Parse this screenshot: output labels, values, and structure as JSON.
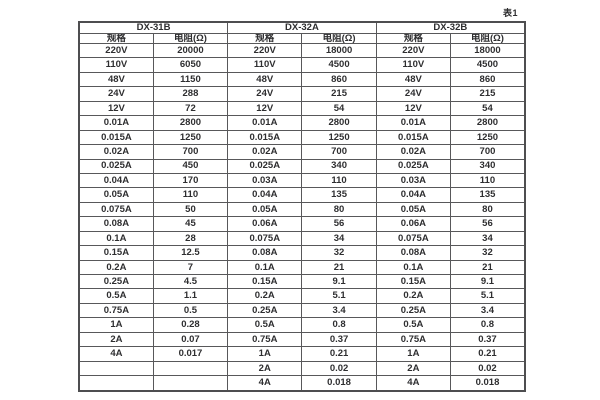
{
  "page": {
    "caption": "表1"
  },
  "table": {
    "groups": [
      {
        "label": "DX-31B"
      },
      {
        "label": "DX-32A"
      },
      {
        "label": "DX-32B"
      }
    ],
    "column_headers": {
      "spec": "规格",
      "resistance": "电阻(Ω)"
    },
    "rows": [
      [
        "220V",
        "20000",
        "220V",
        "18000",
        "220V",
        "18000"
      ],
      [
        "110V",
        "6050",
        "110V",
        "4500",
        "110V",
        "4500"
      ],
      [
        "48V",
        "1150",
        "48V",
        "860",
        "48V",
        "860"
      ],
      [
        "24V",
        "288",
        "24V",
        "215",
        "24V",
        "215"
      ],
      [
        "12V",
        "72",
        "12V",
        "54",
        "12V",
        "54"
      ],
      [
        "0.01A",
        "2800",
        "0.01A",
        "2800",
        "0.01A",
        "2800"
      ],
      [
        "0.015A",
        "1250",
        "0.015A",
        "1250",
        "0.015A",
        "1250"
      ],
      [
        "0.02A",
        "700",
        "0.02A",
        "700",
        "0.02A",
        "700"
      ],
      [
        "0.025A",
        "450",
        "0.025A",
        "340",
        "0.025A",
        "340"
      ],
      [
        "0.04A",
        "170",
        "0.03A",
        "110",
        "0.03A",
        "110"
      ],
      [
        "0.05A",
        "110",
        "0.04A",
        "135",
        "0.04A",
        "135"
      ],
      [
        "0.075A",
        "50",
        "0.05A",
        "80",
        "0.05A",
        "80"
      ],
      [
        "0.08A",
        "45",
        "0.06A",
        "56",
        "0.06A",
        "56"
      ],
      [
        "0.1A",
        "28",
        "0.075A",
        "34",
        "0.075A",
        "34"
      ],
      [
        "0.15A",
        "12.5",
        "0.08A",
        "32",
        "0.08A",
        "32"
      ],
      [
        "0.2A",
        "7",
        "0.1A",
        "21",
        "0.1A",
        "21"
      ],
      [
        "0.25A",
        "4.5",
        "0.15A",
        "9.1",
        "0.15A",
        "9.1"
      ],
      [
        "0.5A",
        "1.1",
        "0.2A",
        "5.1",
        "0.2A",
        "5.1"
      ],
      [
        "0.75A",
        "0.5",
        "0.25A",
        "3.4",
        "0.25A",
        "3.4"
      ],
      [
        "1A",
        "0.28",
        "0.5A",
        "0.8",
        "0.5A",
        "0.8"
      ],
      [
        "2A",
        "0.07",
        "0.75A",
        "0.37",
        "0.75A",
        "0.37"
      ],
      [
        "4A",
        "0.017",
        "1A",
        "0.21",
        "1A",
        "0.21"
      ],
      [
        "",
        "",
        "2A",
        "0.02",
        "2A",
        "0.02"
      ],
      [
        "",
        "",
        "4A",
        "0.018",
        "4A",
        "0.018"
      ]
    ]
  }
}
